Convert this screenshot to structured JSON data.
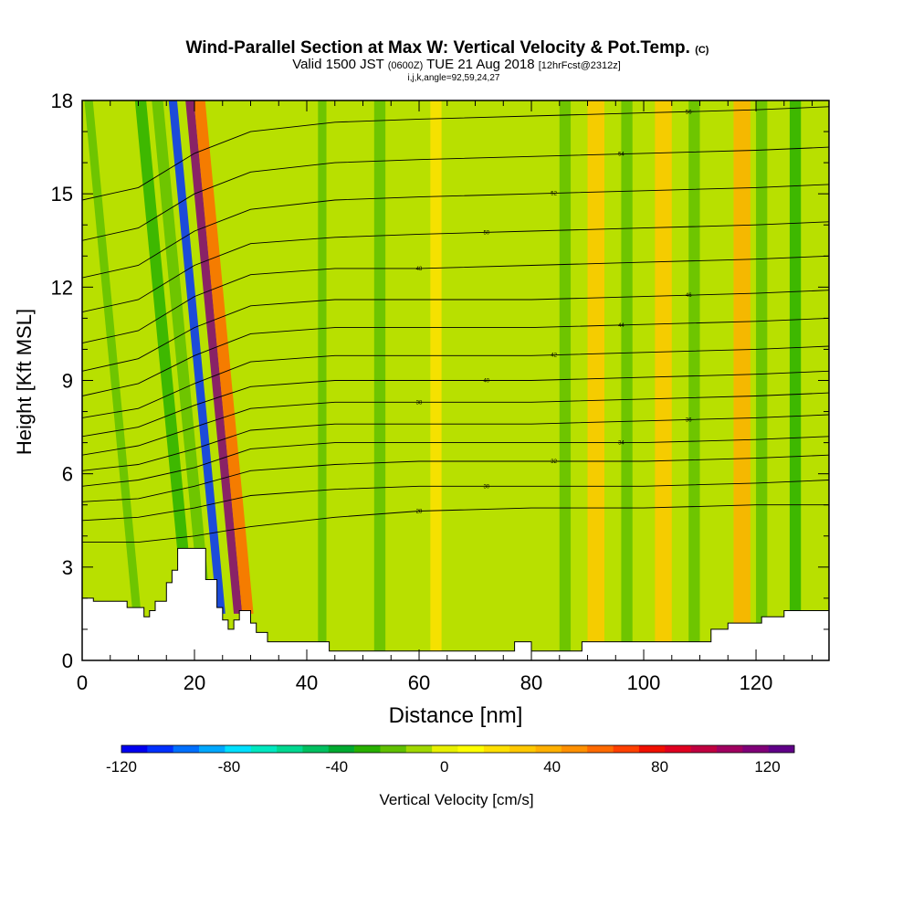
{
  "chart_data": {
    "type": "heatmap",
    "title": "Wind-Parallel Section at Max W: Vertical Velocity & Pot.Temp.",
    "title_badge": "(C)",
    "subtitle": {
      "part1": "Valid 1500 JST ",
      "part2": "(0600Z)",
      "part3": " TUE 21 Aug 2018 ",
      "part4": "[12hrFcst@2312z]"
    },
    "indices": "i,j,k,angle=92,59,24,27",
    "xlabel": "Distance [nm]",
    "ylabel": "Height [Kft MSL]",
    "xlim": [
      0,
      133
    ],
    "ylim": [
      0,
      18
    ],
    "x_ticks": [
      "0",
      "20",
      "40",
      "60",
      "80",
      "100",
      "120"
    ],
    "y_ticks": [
      "0",
      "3",
      "6",
      "9",
      "12",
      "15",
      "18"
    ],
    "colorbar": {
      "label": "Vertical Velocity [cm/s]",
      "range": [
        -120,
        130
      ],
      "tick_labels": [
        "-120",
        "-80",
        "-40",
        "0",
        "40",
        "80",
        "120"
      ],
      "colors": [
        "#0000f0",
        "#0030ff",
        "#0070ff",
        "#00a8ff",
        "#00e0ff",
        "#00e8c0",
        "#00d890",
        "#00c060",
        "#00aa30",
        "#28b000",
        "#60c000",
        "#a0d800",
        "#e8f000",
        "#ffff00",
        "#ffe000",
        "#ffc800",
        "#ffb000",
        "#ff9000",
        "#ff6a00",
        "#ff4000",
        "#f01000",
        "#e00020",
        "#c00040",
        "#a00060",
        "#800078",
        "#600088"
      ]
    },
    "terrain_profile": [
      [
        0,
        2
      ],
      [
        2,
        2
      ],
      [
        2,
        1.9
      ],
      [
        8,
        1.9
      ],
      [
        8,
        1.7
      ],
      [
        11,
        1.7
      ],
      [
        11,
        1.4
      ],
      [
        12,
        1.4
      ],
      [
        12,
        1.6
      ],
      [
        13,
        1.6
      ],
      [
        13,
        1.9
      ],
      [
        15,
        1.9
      ],
      [
        15,
        2.5
      ],
      [
        16,
        2.5
      ],
      [
        16,
        2.9
      ],
      [
        17,
        2.9
      ],
      [
        17,
        3.6
      ],
      [
        22,
        3.6
      ],
      [
        22,
        2.6
      ],
      [
        24,
        2.6
      ],
      [
        24,
        1.7
      ],
      [
        25,
        1.7
      ],
      [
        25,
        1.3
      ],
      [
        26,
        1.3
      ],
      [
        26,
        1.0
      ],
      [
        27,
        1.0
      ],
      [
        27,
        1.3
      ],
      [
        28,
        1.3
      ],
      [
        28,
        1.6
      ],
      [
        30,
        1.6
      ],
      [
        30,
        1.2
      ],
      [
        31,
        1.2
      ],
      [
        31,
        0.9
      ],
      [
        33,
        0.9
      ],
      [
        33,
        0.6
      ],
      [
        44,
        0.6
      ],
      [
        44,
        0.3
      ],
      [
        77,
        0.3
      ],
      [
        77,
        0.6
      ],
      [
        80,
        0.6
      ],
      [
        80,
        0.3
      ],
      [
        89,
        0.3
      ],
      [
        89,
        0.6
      ],
      [
        112,
        0.6
      ],
      [
        112,
        1.0
      ],
      [
        115,
        1.0
      ],
      [
        115,
        1.2
      ],
      [
        121,
        1.2
      ],
      [
        121,
        1.4
      ],
      [
        125,
        1.4
      ],
      [
        125,
        1.6
      ],
      [
        133,
        1.6
      ]
    ],
    "w_bands": [
      {
        "x0": 24,
        "x1": 25.5,
        "w": -110,
        "kind": "slope"
      },
      {
        "x0": 27,
        "x1": 28.5,
        "w": 115,
        "kind": "slope"
      },
      {
        "x0": 28.5,
        "x1": 30.5,
        "w": 60,
        "kind": "slope"
      },
      {
        "x0": 21,
        "x1": 23,
        "w": -20,
        "kind": "slope"
      },
      {
        "x0": 18,
        "x1": 20,
        "w": -25,
        "kind": "slope"
      },
      {
        "x0": 9,
        "x1": 10.5,
        "w": -20,
        "kind": "slope"
      },
      {
        "x0": 42,
        "x1": 43.5,
        "w": -20,
        "kind": "vertical"
      },
      {
        "x0": 52,
        "x1": 54,
        "w": -15,
        "kind": "vertical"
      },
      {
        "x0": 62,
        "x1": 64,
        "w": 20,
        "kind": "vertical"
      },
      {
        "x0": 85,
        "x1": 87,
        "w": -15,
        "kind": "vertical"
      },
      {
        "x0": 90,
        "x1": 93,
        "w": 30,
        "kind": "vertical"
      },
      {
        "x0": 96,
        "x1": 98,
        "w": -15,
        "kind": "vertical"
      },
      {
        "x0": 102,
        "x1": 105,
        "w": 30,
        "kind": "vertical"
      },
      {
        "x0": 108,
        "x1": 110,
        "w": -15,
        "kind": "vertical"
      },
      {
        "x0": 116,
        "x1": 119,
        "w": 35,
        "kind": "vertical"
      },
      {
        "x0": 120,
        "x1": 122,
        "w": -20,
        "kind": "vertical"
      },
      {
        "x0": 126,
        "x1": 128,
        "w": -25,
        "kind": "vertical"
      }
    ],
    "theta_contours": [
      {
        "label": "28",
        "z": [
          3.8,
          3.8,
          4.0,
          4.3,
          4.6,
          4.8,
          4.9,
          4.9,
          5.0,
          5.0
        ]
      },
      {
        "label": "30",
        "z": [
          4.5,
          4.6,
          4.9,
          5.3,
          5.5,
          5.6,
          5.6,
          5.6,
          5.7,
          5.8
        ]
      },
      {
        "label": "32",
        "z": [
          5.1,
          5.2,
          5.6,
          6.1,
          6.3,
          6.4,
          6.4,
          6.4,
          6.5,
          6.6
        ]
      },
      {
        "label": "34",
        "z": [
          5.6,
          5.8,
          6.2,
          6.8,
          7.0,
          7.0,
          7.0,
          7.0,
          7.1,
          7.2
        ]
      },
      {
        "label": "36",
        "z": [
          6.1,
          6.3,
          6.8,
          7.4,
          7.6,
          7.6,
          7.6,
          7.7,
          7.8,
          7.9
        ]
      },
      {
        "label": "38",
        "z": [
          6.6,
          6.9,
          7.5,
          8.1,
          8.3,
          8.3,
          8.3,
          8.4,
          8.5,
          8.6
        ]
      },
      {
        "label": "40",
        "z": [
          7.2,
          7.5,
          8.2,
          8.8,
          9.0,
          9.0,
          9.0,
          9.1,
          9.2,
          9.3
        ]
      },
      {
        "label": "42",
        "z": [
          7.8,
          8.1,
          8.9,
          9.6,
          9.8,
          9.8,
          9.8,
          9.9,
          10.0,
          10.1
        ]
      },
      {
        "label": "44",
        "z": [
          8.5,
          8.9,
          9.8,
          10.5,
          10.7,
          10.7,
          10.7,
          10.8,
          10.9,
          11.0
        ]
      },
      {
        "label": "46",
        "z": [
          9.3,
          9.7,
          10.7,
          11.4,
          11.6,
          11.6,
          11.6,
          11.7,
          11.8,
          11.9
        ]
      },
      {
        "label": "48",
        "z": [
          10.2,
          10.6,
          11.7,
          12.4,
          12.6,
          12.6,
          12.7,
          12.8,
          12.9,
          13.0
        ]
      },
      {
        "label": "50",
        "z": [
          11.2,
          11.6,
          12.7,
          13.4,
          13.6,
          13.7,
          13.8,
          13.9,
          14.0,
          14.1
        ]
      },
      {
        "label": "52",
        "z": [
          12.3,
          12.7,
          13.8,
          14.5,
          14.8,
          14.9,
          15.0,
          15.1,
          15.2,
          15.3
        ]
      },
      {
        "label": "54",
        "z": [
          13.5,
          13.9,
          15.0,
          15.7,
          16.0,
          16.1,
          16.2,
          16.3,
          16.4,
          16.5
        ]
      },
      {
        "label": "56",
        "z": [
          14.8,
          15.2,
          16.3,
          17.0,
          17.3,
          17.4,
          17.5,
          17.6,
          17.7,
          17.8
        ]
      }
    ]
  }
}
